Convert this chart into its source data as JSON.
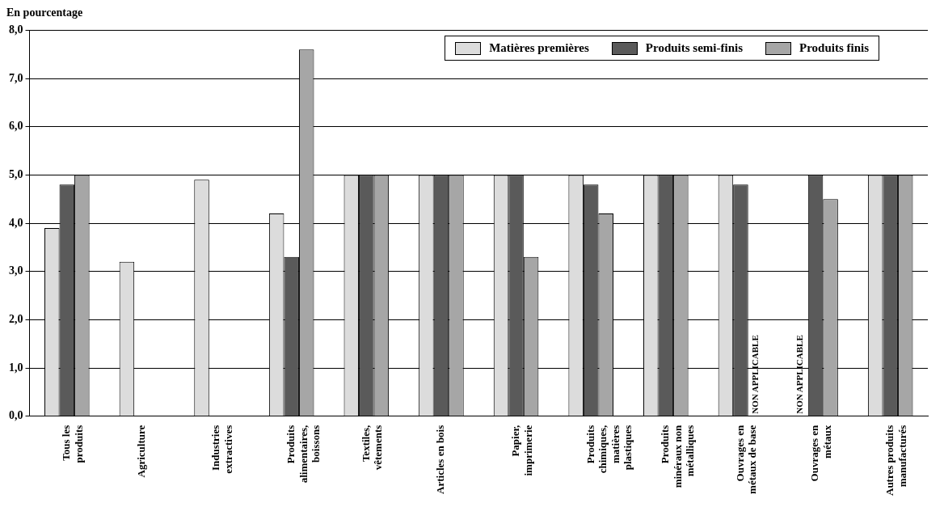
{
  "chart_data": {
    "type": "bar",
    "ylabel": "En pourcentage",
    "categories": [
      "Tous les produits",
      "Agriculture",
      "Industries extractives",
      "Produits alimentaires, boissons",
      "Textiles, vêtements",
      "Articles en bois",
      "Papier, imprimerie",
      "Produits chimiques, matières plastiques",
      "Produits minéraux non métalliques",
      "Ouvrages en métaux de base",
      "Ouvrages en métaux",
      "Autres produits manufacturés"
    ],
    "series": [
      {
        "name": "Matières premières",
        "color": "#dcdcdc",
        "values": [
          3.9,
          3.2,
          4.9,
          4.2,
          5.0,
          5.0,
          5.0,
          5.0,
          5.0,
          5.0,
          null,
          5.0
        ]
      },
      {
        "name": "Produits semi-finis",
        "color": "#5a5a5a",
        "values": [
          4.8,
          null,
          null,
          3.3,
          5.0,
          5.0,
          5.0,
          4.8,
          5.0,
          4.8,
          5.0,
          5.0
        ]
      },
      {
        "name": "Produits finis",
        "color": "#a6a6a6",
        "values": [
          5.0,
          null,
          null,
          7.6,
          5.0,
          5.0,
          3.3,
          4.2,
          5.0,
          null,
          4.5,
          5.0
        ]
      }
    ],
    "ylim": [
      0,
      8
    ],
    "yticks": [
      {
        "value": 0,
        "label": "0,0"
      },
      {
        "value": 1,
        "label": "1,0"
      },
      {
        "value": 2,
        "label": "2,0"
      },
      {
        "value": 3,
        "label": "3,0"
      },
      {
        "value": 4,
        "label": "4,0"
      },
      {
        "value": 5,
        "label": "5,0"
      },
      {
        "value": 6,
        "label": "6,0"
      },
      {
        "value": 7,
        "label": "7,0"
      },
      {
        "value": 8,
        "label": "8,0"
      }
    ],
    "grid": "y",
    "legend": "top right",
    "annotations": [
      {
        "text": "NON APPLICABLE",
        "x": "Ouvrages en métaux de base",
        "y": 0
      },
      {
        "text": "NON APPLICABLE",
        "x": "Ouvrages en métaux",
        "y": 0
      }
    ]
  }
}
